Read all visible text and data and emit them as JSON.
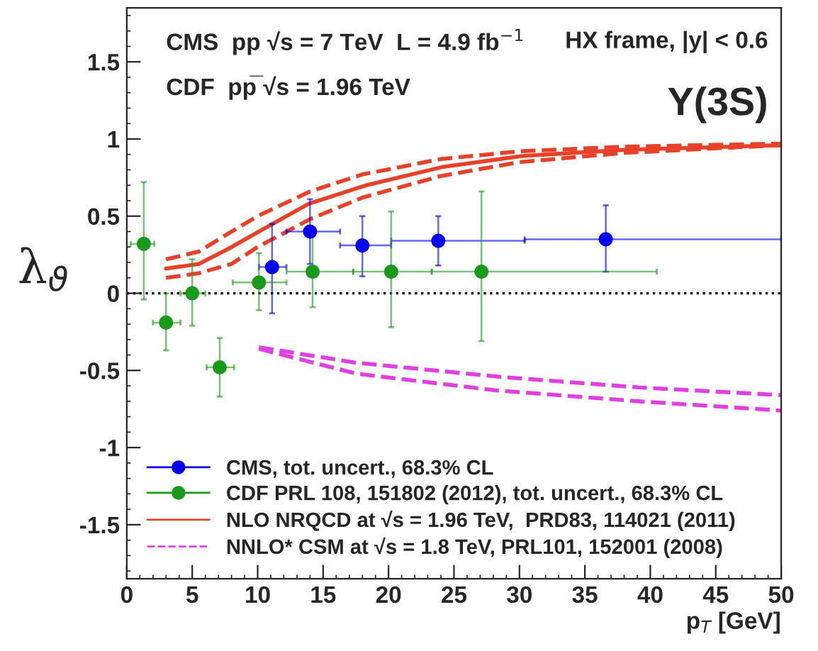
{
  "chart_data": {
    "type": "scatter",
    "xlabel": "p$_{T}$ [GeV]",
    "ylabel": "λ$_{ϑ}$",
    "annotations": [
      "CMS  pp √s = 7 TeV  L = 4.9 fb$^{−1}$",
      "CDF  pp̅ √s = 1.96 TeV",
      "HX frame, |y| < 0.6",
      "Υ(3S)"
    ],
    "xlim": [
      0,
      50
    ],
    "ylim": [
      -1.85,
      1.85
    ],
    "xticks": [
      0,
      5,
      10,
      15,
      20,
      25,
      30,
      35,
      40,
      45,
      50
    ],
    "yticks": [
      -1.5,
      -1,
      -0.5,
      0,
      0.5,
      1,
      1.5
    ],
    "ref_lines": [
      {
        "axis": "y",
        "value": 0,
        "color": "#000000",
        "line_style": "dotted"
      }
    ],
    "legend": "bottom left",
    "grid": false,
    "series": [
      {
        "name": "CMS, tot. uncert., 68.3% CL",
        "marker": "circle",
        "color": "#0000ee",
        "x": [
          11.1,
          14.0,
          18.0,
          23.8,
          36.6
        ],
        "values": [
          0.17,
          0.4,
          0.31,
          0.34,
          0.35
        ],
        "errors": [
          [
            -0.13,
            0.45
          ],
          [
            0.19,
            0.61
          ],
          [
            0.11,
            0.5
          ],
          [
            0.18,
            0.5
          ],
          [
            0.14,
            0.57
          ]
        ],
        "xerrors": [
          [
            10.1,
            12.2
          ],
          [
            12.2,
            16.3
          ],
          [
            16.3,
            20.2
          ],
          [
            20.2,
            30.4
          ],
          [
            30.4,
            50
          ]
        ]
      },
      {
        "name": "CDF PRL 108, 151802 (2012), tot. uncert., 68.3% CL",
        "marker": "circle",
        "color": "#1a9a1a",
        "x": [
          1.3,
          3.0,
          5.0,
          7.1,
          10.1,
          14.2,
          20.2,
          27.1
        ],
        "values": [
          0.32,
          -0.19,
          0,
          -0.48,
          0.07,
          0.14,
          0.14,
          0.14
        ],
        "errors": [
          [
            -0.04,
            0.72
          ],
          [
            -0.37,
            0
          ],
          [
            -0.21,
            0.22
          ],
          [
            -0.67,
            -0.29
          ],
          [
            -0.11,
            0.26
          ],
          [
            -0.09,
            0.37
          ],
          [
            -0.22,
            0.53
          ],
          [
            -0.31,
            0.66
          ]
        ],
        "xerrors": [
          [
            0.3,
            2.1
          ],
          [
            2.0,
            4.1
          ],
          [
            4.1,
            6.0
          ],
          [
            6.1,
            8.2
          ],
          [
            8.1,
            12.2
          ],
          [
            12.2,
            17.3
          ],
          [
            17.3,
            23.3
          ],
          [
            23.3,
            40.5
          ]
        ]
      },
      {
        "name": "NLO NRQCD at √s = 1.96 TeV,  PRD83, 114021 (2011)",
        "type": "line",
        "line_style": "solid",
        "color": "#e8412a",
        "x": [
          3,
          5.5,
          7.8,
          10.3,
          13.9,
          18.3,
          24.2,
          30.2,
          38.1,
          50
        ],
        "values": [
          0.16,
          0.19,
          0.29,
          0.41,
          0.58,
          0.7,
          0.82,
          0.89,
          0.93,
          0.96
        ]
      },
      {
        "type": "line",
        "line_style": "dashed",
        "color": "#e8412a",
        "x": [
          3,
          5.5,
          8,
          10,
          14,
          18,
          24,
          30,
          38,
          50
        ],
        "values": [
          0.22,
          0.27,
          0.4,
          0.5,
          0.66,
          0.77,
          0.87,
          0.92,
          0.95,
          0.97
        ]
      },
      {
        "type": "line",
        "line_style": "dashed",
        "color": "#e8412a",
        "x": [
          3,
          5.5,
          8,
          10,
          14,
          18,
          24,
          30,
          38,
          50
        ],
        "values": [
          0.1,
          0.13,
          0.19,
          0.3,
          0.48,
          0.62,
          0.76,
          0.85,
          0.91,
          0.96
        ]
      },
      {
        "name": "NNLO* CSM at √s = 1.8 TeV, PRL101, 152001 (2008)",
        "type": "line",
        "line_style": "dashed",
        "color": "#e040e0",
        "x": [
          10.1,
          17.5,
          28.3,
          39.1,
          50
        ],
        "values": [
          -0.35,
          -0.45,
          -0.54,
          -0.61,
          -0.66
        ]
      },
      {
        "type": "line",
        "line_style": "dashed",
        "color": "#e040e0",
        "x": [
          10.1,
          17.5,
          28.3,
          39.1,
          50
        ],
        "values": [
          -0.36,
          -0.52,
          -0.63,
          -0.7,
          -0.76
        ]
      }
    ]
  }
}
